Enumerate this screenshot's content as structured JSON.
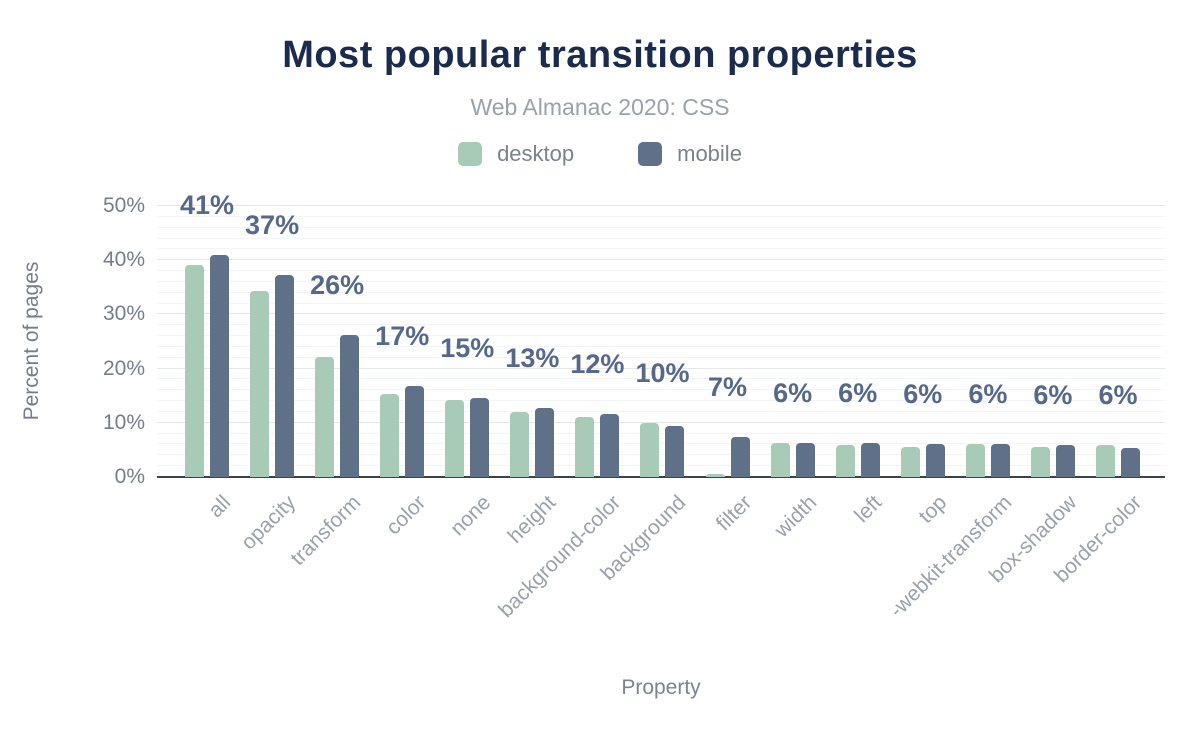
{
  "chart_data": {
    "type": "bar",
    "title": "Most popular transition properties",
    "subtitle": "Web Almanac 2020: CSS",
    "xlabel": "Property",
    "ylabel": "Percent of pages",
    "ylim": [
      0,
      50
    ],
    "yticks": [
      0,
      10,
      20,
      30,
      40,
      50
    ],
    "y_tick_suffix": "%",
    "grid": "horizontal, minor every 2%, major every 10%",
    "legend_position": "top",
    "categories": [
      "all",
      "opacity",
      "transform",
      "color",
      "none",
      "height",
      "background-color",
      "background",
      "filter",
      "width",
      "left",
      "top",
      "-webkit-transform",
      "box-shadow",
      "border-color"
    ],
    "series": [
      {
        "name": "desktop",
        "color": "#a8cbb8",
        "values": [
          39.1,
          34.3,
          22.2,
          15.4,
          14.2,
          12.0,
          11.0,
          9.9,
          0.5,
          6.3,
          5.9,
          5.6,
          6.0,
          5.6,
          5.9
        ]
      },
      {
        "name": "mobile",
        "color": "#5f7189",
        "values": [
          41.0,
          37.2,
          26.2,
          16.8,
          14.6,
          12.8,
          11.6,
          9.5,
          7.4,
          6.3,
          6.3,
          6.0,
          6.0,
          5.9,
          5.4
        ]
      }
    ],
    "bar_labels": [
      "41%",
      "37%",
      "26%",
      "17%",
      "15%",
      "13%",
      "12%",
      "10%",
      "7%",
      "6%",
      "6%",
      "6%",
      "6%",
      "6%",
      "6%"
    ]
  },
  "colors": {
    "title": "#1b2b4e",
    "subtitle": "#9aa1a8",
    "axis_text": "#757d89",
    "x_tick_text": "#9aa1a8",
    "bar_label": "#56688a",
    "axis_line": "#3d4449",
    "gridline_major": "#e5e8ea",
    "gridline_minor": "#f2f4f5",
    "background": "#ffffff"
  }
}
